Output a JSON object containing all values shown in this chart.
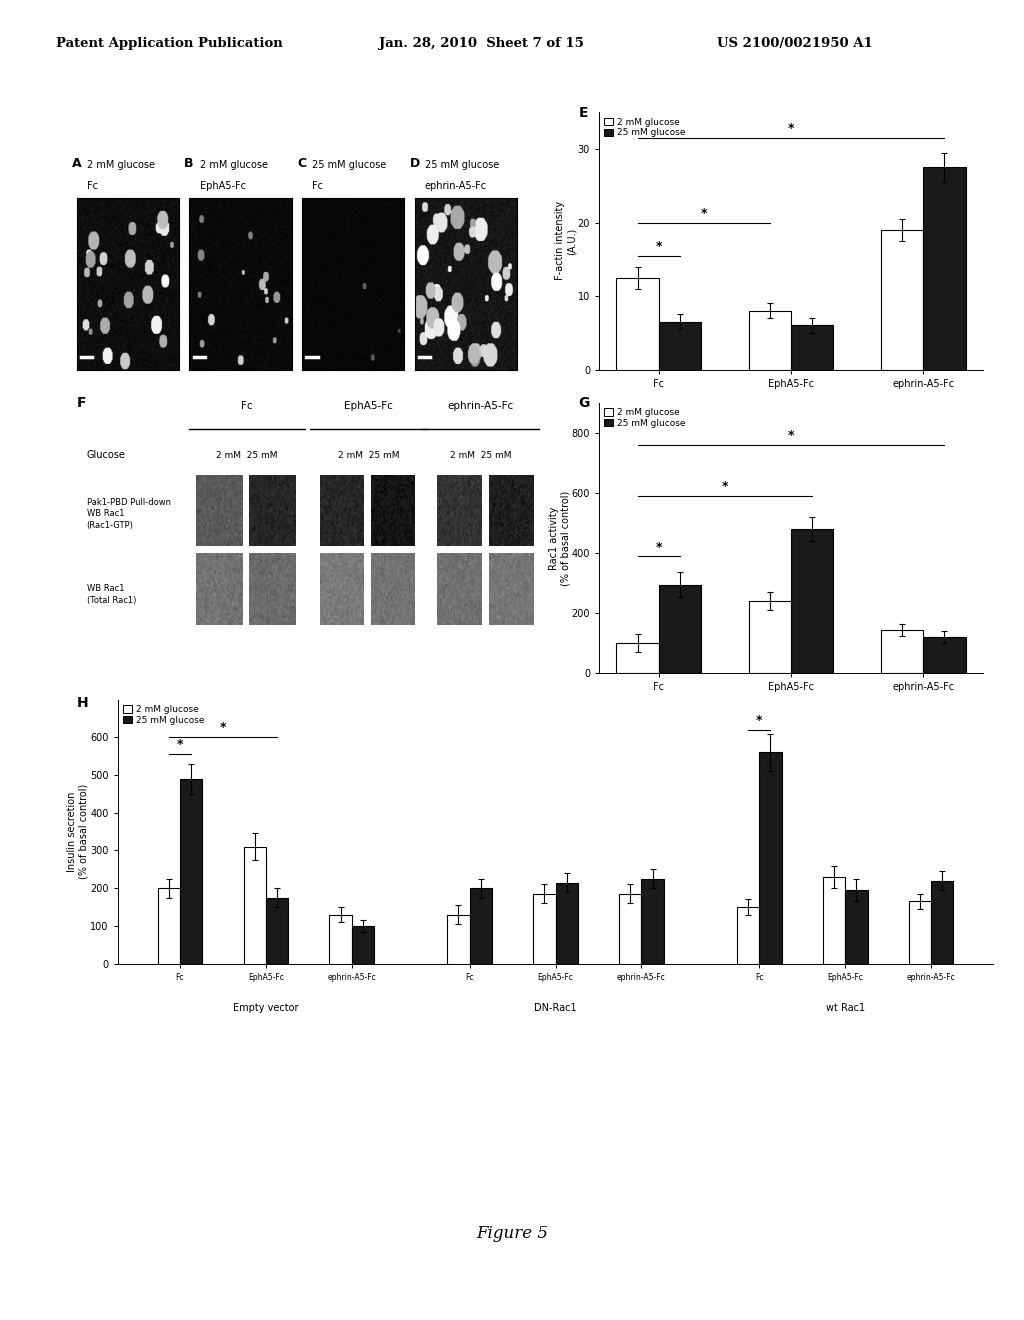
{
  "header_left": "Patent Application Publication",
  "header_mid": "Jan. 28, 2010  Sheet 7 of 15",
  "header_right": "US 2100/0021950 A1",
  "figure_label": "Figure 5",
  "panel_A_title": "2 mM glucose\nFc",
  "panel_B_title": "2 mM glucose\nEphA5-Fc",
  "panel_C_title": "25 mM glucose\nFc",
  "panel_D_title": "25 mM glucose\nephrin-A5-Fc",
  "panel_E": {
    "label": "E",
    "legend": [
      "2 mM glucose",
      "25 mM glucose"
    ],
    "categories": [
      "Fc",
      "EphA5-Fc",
      "ephrin-A5-Fc"
    ],
    "values_2mM": [
      12.5,
      8.0,
      19.0
    ],
    "errors_2mM": [
      1.5,
      1.0,
      1.5
    ],
    "values_25mM": [
      6.5,
      6.0,
      27.5
    ],
    "errors_25mM": [
      1.0,
      1.0,
      2.0
    ],
    "ylabel": "F-actin intensity\n(A.U.)",
    "ylim": [
      0,
      35
    ],
    "yticks": [
      0,
      10,
      20,
      30
    ]
  },
  "panel_G": {
    "label": "G",
    "legend": [
      "2 mM glucose",
      "25 mM glucose"
    ],
    "categories": [
      "Fc",
      "EphA5-Fc",
      "ephrin-A5-Fc"
    ],
    "values_2mM": [
      100,
      240,
      145
    ],
    "errors_2mM": [
      30,
      30,
      20
    ],
    "values_25mM": [
      295,
      480,
      120
    ],
    "errors_25mM": [
      40,
      40,
      20
    ],
    "ylabel": "Rac1 activity\n(% of basal control)",
    "ylim": [
      0,
      900
    ],
    "yticks": [
      0,
      200,
      400,
      600,
      800
    ]
  },
  "panel_H": {
    "label": "H",
    "legend": [
      "2 mM glucose",
      "25 mM glucose"
    ],
    "groups": [
      "Empty vector",
      "DN-Rac1",
      "wt Rac1"
    ],
    "categories": [
      "Fc",
      "EphA5-Fc",
      "ephrin-A5-Fc"
    ],
    "values_2mM": [
      [
        200,
        310,
        130
      ],
      [
        130,
        185,
        185
      ],
      [
        150,
        230,
        165
      ]
    ],
    "errors_2mM": [
      [
        25,
        35,
        20
      ],
      [
        25,
        25,
        25
      ],
      [
        20,
        30,
        20
      ]
    ],
    "values_25mM": [
      [
        490,
        175,
        100
      ],
      [
        200,
        215,
        225
      ],
      [
        560,
        195,
        220
      ]
    ],
    "errors_25mM": [
      [
        40,
        25,
        15
      ],
      [
        25,
        25,
        25
      ],
      [
        50,
        30,
        25
      ]
    ],
    "ylabel": "Insulin secretion\n(% of basal control)",
    "ylim": [
      0,
      700
    ],
    "yticks": [
      0,
      100,
      200,
      300,
      400,
      500,
      600
    ]
  },
  "bg_color": "#ffffff",
  "text_color": "#000000",
  "bar_white": "#ffffff",
  "bar_black": "#1a1a1a",
  "bar_edge": "#000000"
}
